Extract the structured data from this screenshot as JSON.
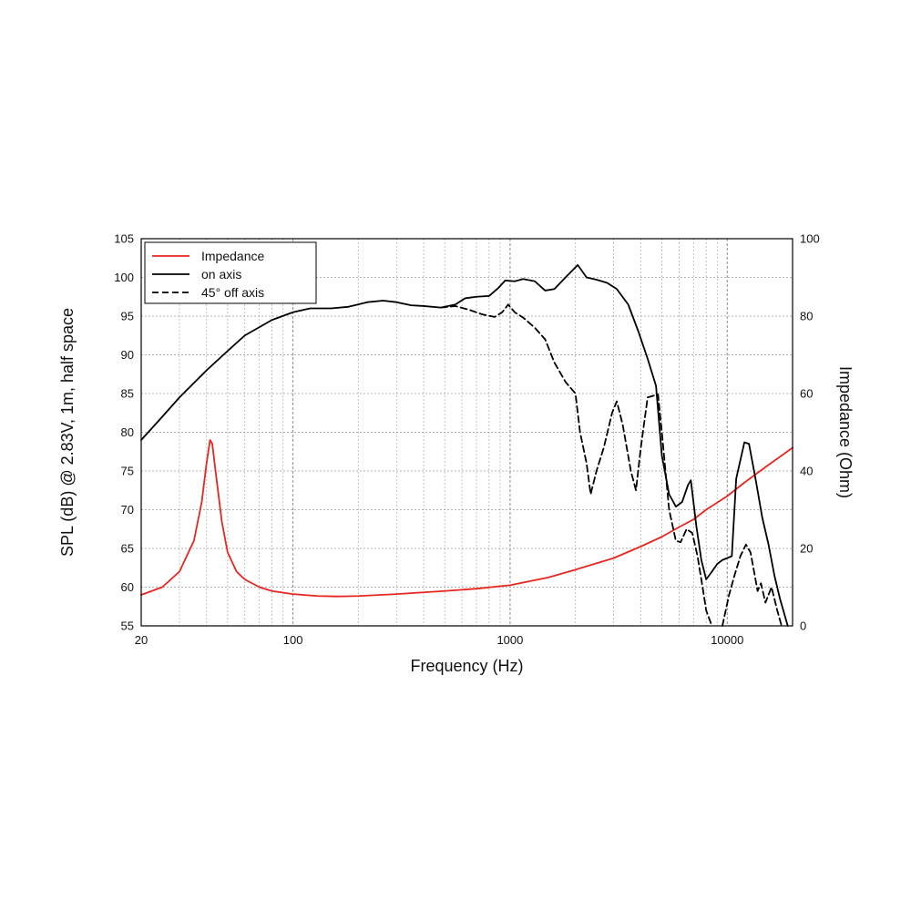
{
  "chart_data": {
    "type": "line",
    "xlabel": "Frequency (Hz)",
    "ylabel": "SPL (dB) @ 2.83V, 1m, half space",
    "ylabel_right": "Impedance (Ohm)",
    "x_scale": "log",
    "xlim": [
      20,
      20000
    ],
    "ylim": [
      55,
      105
    ],
    "ylim_right": [
      0,
      100
    ],
    "x_ticks": [
      {
        "value": 20,
        "label": "20"
      },
      {
        "value": 100,
        "label": "100"
      },
      {
        "value": 1000,
        "label": "1000"
      },
      {
        "value": 10000,
        "label": "10000"
      }
    ],
    "y_ticks": [
      55,
      60,
      65,
      70,
      75,
      80,
      85,
      90,
      95,
      100,
      105
    ],
    "y_ticks_right": [
      0,
      20,
      40,
      60,
      80,
      100
    ],
    "grid": true,
    "legend_position": "top-left",
    "series": [
      {
        "name": "Impedance",
        "axis": "right",
        "color": "#e8261f",
        "dash": "solid",
        "points": [
          [
            20,
            8
          ],
          [
            25,
            10
          ],
          [
            30,
            14
          ],
          [
            35,
            22
          ],
          [
            38,
            32
          ],
          [
            40,
            42
          ],
          [
            41.5,
            48
          ],
          [
            42.5,
            47
          ],
          [
            44,
            40
          ],
          [
            47,
            27
          ],
          [
            50,
            19
          ],
          [
            55,
            14
          ],
          [
            60,
            12
          ],
          [
            70,
            10
          ],
          [
            80,
            9
          ],
          [
            100,
            8.2
          ],
          [
            130,
            7.7
          ],
          [
            160,
            7.6
          ],
          [
            200,
            7.7
          ],
          [
            300,
            8.2
          ],
          [
            500,
            9
          ],
          [
            700,
            9.6
          ],
          [
            1000,
            10.5
          ],
          [
            1500,
            12.5
          ],
          [
            2000,
            14.5
          ],
          [
            3000,
            17.5
          ],
          [
            4000,
            20.5
          ],
          [
            5000,
            23
          ],
          [
            6000,
            25.5
          ],
          [
            7000,
            27.5
          ],
          [
            8000,
            30
          ],
          [
            10000,
            33.5
          ],
          [
            12000,
            37
          ],
          [
            15000,
            41
          ],
          [
            20000,
            46
          ]
        ]
      },
      {
        "name": "on axis",
        "axis": "left",
        "color": "#000000",
        "dash": "solid",
        "points": [
          [
            20,
            79
          ],
          [
            25,
            82
          ],
          [
            30,
            84.5
          ],
          [
            40,
            88
          ],
          [
            50,
            90.5
          ],
          [
            60,
            92.5
          ],
          [
            80,
            94.5
          ],
          [
            100,
            95.5
          ],
          [
            120,
            96
          ],
          [
            150,
            96
          ],
          [
            180,
            96.2
          ],
          [
            220,
            96.8
          ],
          [
            260,
            97
          ],
          [
            300,
            96.8
          ],
          [
            350,
            96.4
          ],
          [
            400,
            96.3
          ],
          [
            480,
            96.1
          ],
          [
            560,
            96.5
          ],
          [
            620,
            97.3
          ],
          [
            700,
            97.5
          ],
          [
            800,
            97.6
          ],
          [
            880,
            98.6
          ],
          [
            950,
            99.6
          ],
          [
            1050,
            99.5
          ],
          [
            1150,
            99.8
          ],
          [
            1300,
            99.5
          ],
          [
            1450,
            98.3
          ],
          [
            1600,
            98.5
          ],
          [
            1800,
            100
          ],
          [
            2050,
            101.6
          ],
          [
            2250,
            100
          ],
          [
            2500,
            99.7
          ],
          [
            2800,
            99.3
          ],
          [
            3100,
            98.5
          ],
          [
            3500,
            96.5
          ],
          [
            3900,
            93
          ],
          [
            4300,
            89.5
          ],
          [
            4700,
            86
          ],
          [
            5000,
            77
          ],
          [
            5400,
            72
          ],
          [
            5800,
            70.4
          ],
          [
            6200,
            71
          ],
          [
            6600,
            73.2
          ],
          [
            6800,
            73.8
          ],
          [
            7200,
            68
          ],
          [
            7600,
            63.5
          ],
          [
            8000,
            61
          ],
          [
            8500,
            62
          ],
          [
            9000,
            63
          ],
          [
            9500,
            63.5
          ],
          [
            10500,
            64
          ],
          [
            11000,
            74
          ],
          [
            12000,
            78.7
          ],
          [
            12600,
            78.5
          ],
          [
            13500,
            74
          ],
          [
            14500,
            69
          ],
          [
            15500,
            65.5
          ],
          [
            16500,
            61.5
          ],
          [
            17500,
            58.5
          ],
          [
            19000,
            55
          ]
        ]
      },
      {
        "name": "45° off axis",
        "axis": "left",
        "color": "#000000",
        "dash": "dashed",
        "points": [
          [
            480,
            96.1
          ],
          [
            560,
            96.3
          ],
          [
            650,
            95.8
          ],
          [
            750,
            95.2
          ],
          [
            850,
            94.9
          ],
          [
            920,
            95.5
          ],
          [
            980,
            96.5
          ],
          [
            1050,
            95.5
          ],
          [
            1150,
            94.8
          ],
          [
            1300,
            93.5
          ],
          [
            1450,
            92
          ],
          [
            1600,
            89
          ],
          [
            1800,
            86.5
          ],
          [
            2000,
            85
          ],
          [
            2100,
            80
          ],
          [
            2250,
            76
          ],
          [
            2350,
            72
          ],
          [
            2500,
            75
          ],
          [
            2700,
            78
          ],
          [
            2950,
            82.5
          ],
          [
            3100,
            84
          ],
          [
            3300,
            81
          ],
          [
            3600,
            75
          ],
          [
            3800,
            72.5
          ],
          [
            4000,
            78
          ],
          [
            4300,
            84.5
          ],
          [
            4800,
            84.9
          ],
          [
            5000,
            80
          ],
          [
            5400,
            70
          ],
          [
            5800,
            66
          ],
          [
            6100,
            65.8
          ],
          [
            6500,
            67.5
          ],
          [
            6900,
            67
          ],
          [
            7300,
            64
          ],
          [
            7700,
            60
          ],
          [
            8000,
            57
          ],
          [
            8500,
            55
          ]
        ]
      },
      {
        "name": "45° off axis",
        "axis": "left",
        "color": "#000000",
        "dash": "dashed",
        "legend": false,
        "points": [
          [
            9500,
            55
          ],
          [
            10200,
            59
          ],
          [
            10800,
            61.5
          ],
          [
            11500,
            64
          ],
          [
            12200,
            65.5
          ],
          [
            12800,
            64.5
          ],
          [
            13300,
            62
          ],
          [
            13800,
            59.5
          ],
          [
            14300,
            60.5
          ],
          [
            15000,
            58
          ],
          [
            16000,
            60
          ],
          [
            17000,
            57
          ],
          [
            17800,
            55
          ]
        ]
      }
    ]
  }
}
